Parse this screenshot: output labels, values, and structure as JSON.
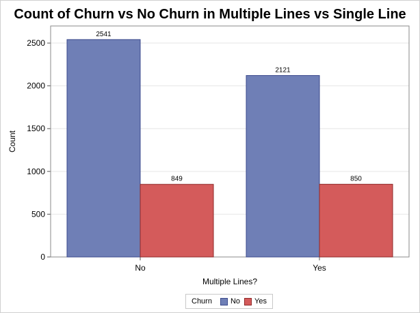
{
  "chart_data": {
    "type": "bar",
    "title": "Count of Churn vs No Churn in Multiple Lines vs Single Line",
    "xlabel": "Multiple Lines?",
    "ylabel": "Count",
    "categories": [
      "No",
      "Yes"
    ],
    "series": [
      {
        "name": "No",
        "values": [
          2541,
          2121
        ],
        "color": "#6f7fb6",
        "stroke": "#3b4a8c"
      },
      {
        "name": "Yes",
        "values": [
          849,
          850
        ],
        "color": "#d45b5b",
        "stroke": "#8f2a2a"
      }
    ],
    "ylim": [
      0,
      2700
    ],
    "yticks": [
      0,
      500,
      1000,
      1500,
      2000,
      2500
    ],
    "grid": true,
    "legend_title": "Churn",
    "legend_position": "bottom-center"
  }
}
